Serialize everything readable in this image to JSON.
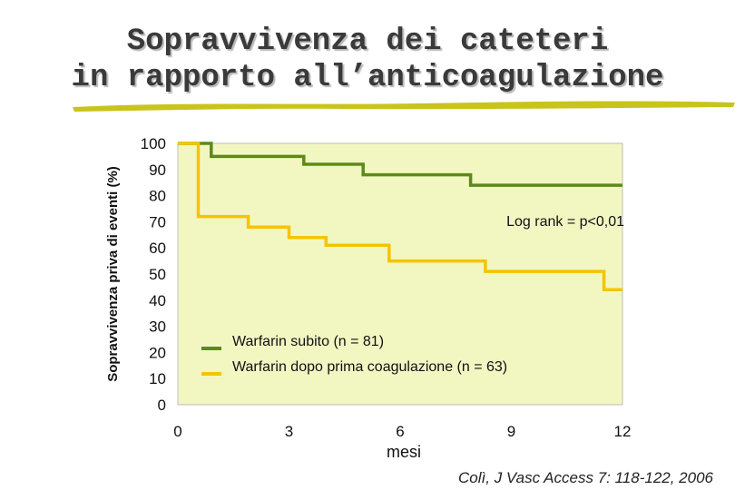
{
  "title": {
    "line1": "Sopravvivenza dei cateteri",
    "line2": "in rapporto all’anticoagulazione"
  },
  "annotation": "Log rank = p<0,01",
  "credit": "Colì, J Vasc Access 7: 118-122, 2006",
  "colors": {
    "plot_bg": "#f2f7c2",
    "green": "#5c8a1a",
    "yellow": "#f5c400",
    "underline": "#c8c41c"
  },
  "chart_data": {
    "type": "line",
    "step": true,
    "xlabel": "mesi",
    "ylabel": "Sopravvivenza priva di eventi (%)",
    "xlim": [
      0,
      12
    ],
    "ylim": [
      0,
      100
    ],
    "xticks": [
      0,
      3,
      6,
      9,
      12
    ],
    "yticks": [
      100,
      90,
      80,
      70,
      60,
      50,
      40,
      30,
      20,
      10,
      0
    ],
    "grid": false,
    "legend_position": "bottom-center",
    "series": [
      {
        "name": "Warfarin subito (n = 81)",
        "color": "#5c8a1a",
        "x": [
          0,
          0.9,
          3.4,
          5.0,
          7.9,
          12
        ],
        "y": [
          100,
          95,
          92,
          88,
          84,
          84
        ]
      },
      {
        "name": "Warfarin dopo prima coagulazione (n = 63)",
        "color": "#f5c400",
        "x": [
          0,
          0.55,
          1.9,
          3.0,
          4.0,
          5.7,
          8.3,
          11.5,
          12
        ],
        "y": [
          100,
          72,
          68,
          64,
          61,
          55,
          51,
          44,
          44
        ]
      }
    ]
  }
}
